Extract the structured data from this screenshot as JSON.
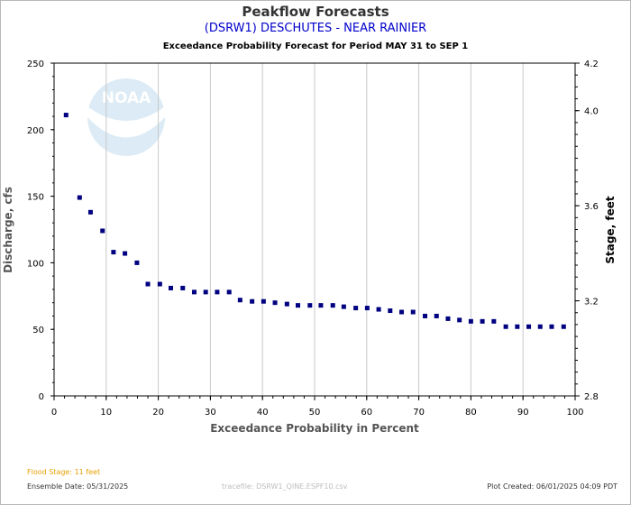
{
  "header": {
    "title": "Peakflow Forecasts",
    "station": "(DSRW1) DESCHUTES - NEAR RAINIER",
    "subtitle": "Exceedance Probability Forecast for Period MAY 31 to SEP 1"
  },
  "footer": {
    "flood_stage": "Flood Stage: 11 feet",
    "ensemble_date": "Ensemble Date: 05/31/2025",
    "tracefile": "tracefile: DSRW1_QINE.ESPF10.csv",
    "plot_created": "Plot Created: 06/01/2025 04:09 PDT"
  },
  "logo": {
    "text": "NOAA",
    "color": "#2f86c8"
  },
  "colors": {
    "point": "#000080",
    "grid": "#c8c8c8",
    "axis": "#000000"
  },
  "chart_data": {
    "type": "scatter",
    "title": "Peakflow Forecasts",
    "subtitle": "Exceedance Probability Forecast for Period MAY 31 to SEP 1",
    "xlabel": "Exceedance Probability in Percent",
    "ylabel": "Discharge, cfs",
    "y2label": "Stage, feet",
    "xlim": [
      0,
      100
    ],
    "ylim": [
      0,
      250
    ],
    "y2lim": [
      2.8,
      4.2
    ],
    "xticks": [
      0,
      10,
      20,
      30,
      40,
      50,
      60,
      70,
      80,
      90,
      100
    ],
    "yticks": [
      0,
      50,
      100,
      150,
      200,
      250
    ],
    "y2ticks": [
      "2.8",
      "3.2",
      "3.6",
      "4.0",
      "4.2"
    ],
    "y2tick_values": [
      2.8,
      3.2,
      3.6,
      4.0,
      4.2
    ],
    "grid": true,
    "series": [
      {
        "x": [
          2.3,
          4.9,
          7.0,
          9.3,
          11.4,
          13.6,
          15.9,
          18.0,
          20.3,
          22.4,
          24.7,
          26.9,
          29.1,
          31.3,
          33.6,
          35.7,
          38.0,
          40.2,
          42.4,
          44.7,
          46.8,
          49.1,
          51.2,
          53.5,
          55.6,
          57.9,
          60.1,
          62.3,
          64.5,
          66.7,
          68.9,
          71.2,
          73.4,
          75.6,
          77.8,
          80.0,
          82.2,
          84.4,
          86.7,
          88.9,
          91.1,
          93.3,
          95.5,
          97.8
        ],
        "y": [
          211,
          149,
          138,
          124,
          108,
          107,
          100,
          84,
          84,
          81,
          81,
          78,
          78,
          78,
          78,
          72,
          71,
          71,
          70,
          69,
          68,
          68,
          68,
          68,
          67,
          66,
          66,
          65,
          64,
          63,
          63,
          60,
          60,
          58,
          57,
          56,
          56,
          56,
          52,
          52,
          52,
          52,
          52,
          52
        ]
      }
    ]
  }
}
